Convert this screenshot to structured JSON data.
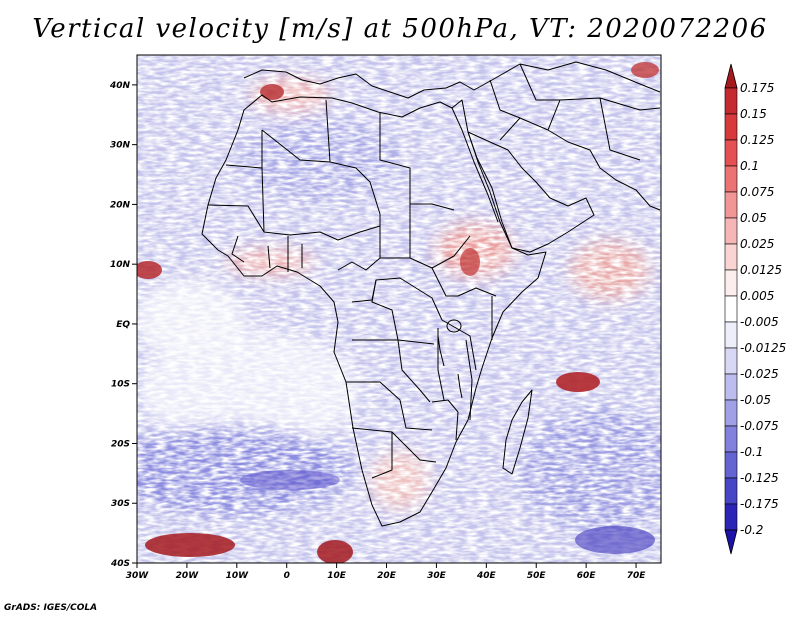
{
  "title": "Vertical velocity [m/s] at 500hPa, VT: 2020072206",
  "footer": "GrADS: IGES/COLA",
  "colors": {
    "positive_strong": "#a51a1f",
    "positive_mid": "#e06060",
    "positive_light": "#f4b8b8",
    "neutral": "#ffffff",
    "negative_light": "#c8c8ee",
    "negative_mid": "#8080dc",
    "negative_strong": "#1d12a8"
  },
  "chart_data": {
    "type": "heatmap",
    "title": "Vertical velocity [m/s] at 500hPa, VT: 2020072206",
    "lon_range": [
      -30,
      75
    ],
    "lat_range": [
      -40,
      45
    ],
    "x_ticks": [
      {
        "value": -30,
        "label": "30W"
      },
      {
        "value": -20,
        "label": "20W"
      },
      {
        "value": -10,
        "label": "10W"
      },
      {
        "value": 0,
        "label": "0"
      },
      {
        "value": 10,
        "label": "10E"
      },
      {
        "value": 20,
        "label": "20E"
      },
      {
        "value": 30,
        "label": "30E"
      },
      {
        "value": 40,
        "label": "40E"
      },
      {
        "value": 50,
        "label": "50E"
      },
      {
        "value": 60,
        "label": "60E"
      },
      {
        "value": 70,
        "label": "70E"
      }
    ],
    "y_ticks": [
      {
        "value": 40,
        "label": "40N"
      },
      {
        "value": 30,
        "label": "30N"
      },
      {
        "value": 20,
        "label": "20N"
      },
      {
        "value": 10,
        "label": "10N"
      },
      {
        "value": 0,
        "label": "EQ"
      },
      {
        "value": -10,
        "label": "10S"
      },
      {
        "value": -20,
        "label": "20S"
      },
      {
        "value": -30,
        "label": "30S"
      },
      {
        "value": -40,
        "label": "40S"
      }
    ],
    "colorbar": {
      "labels": [
        "0.175",
        "0.15",
        "0.125",
        "0.1",
        "0.075",
        "0.05",
        "0.025",
        "0.0125",
        "0.005",
        "-0.005",
        "-0.0125",
        "-0.025",
        "-0.05",
        "-0.075",
        "-0.1",
        "-0.125",
        "-0.175",
        "-0.2"
      ],
      "colors": [
        "#a51a1f",
        "#c42a2e",
        "#d8393b",
        "#e55152",
        "#ec7373",
        "#f29595",
        "#f6b6b6",
        "#fad3d3",
        "#fdeeee",
        "#ffffff",
        "#eeeefb",
        "#d8d8f5",
        "#bcbcee",
        "#a0a0e6",
        "#8282dc",
        "#6464d2",
        "#4646c6",
        "#2c24b6",
        "#1d12a8"
      ]
    }
  }
}
